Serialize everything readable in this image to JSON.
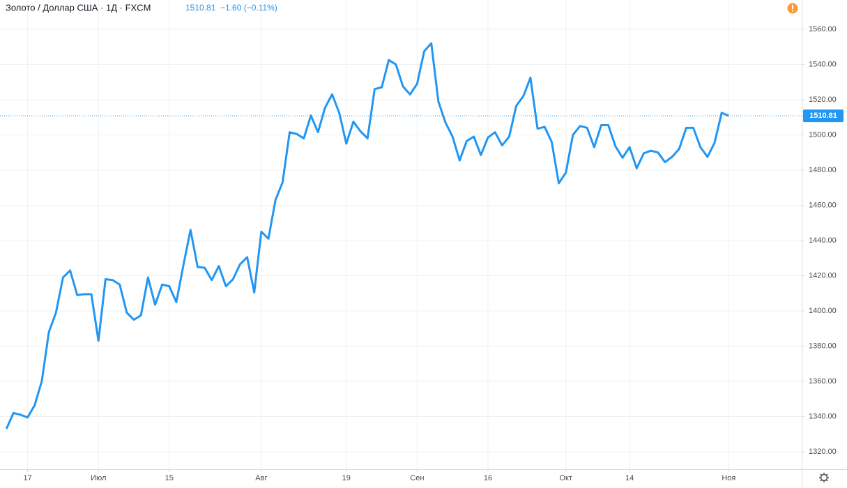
{
  "chart_data": {
    "type": "line",
    "title": "Золото / Доллар США · 1Д · FXCM",
    "change": "−1.60 (−0.11%)",
    "price_line": {
      "value": 1510.81,
      "label": "1510.81"
    },
    "color": "#2196f3",
    "grid": true,
    "values": [
      1333,
      1342,
      1341,
      1339.5,
      1346.5,
      1360,
      1388,
      1399,
      1419,
      1423,
      1409,
      1409.5,
      1409.5,
      1383,
      1418,
      1417.5,
      1415,
      1399,
      1395,
      1397.5,
      1419,
      1403.5,
      1415,
      1414,
      1405,
      1426,
      1446,
      1425,
      1424.5,
      1417.5,
      1425.5,
      1414,
      1418,
      1426.5,
      1430.5,
      1410.5,
      1445,
      1441,
      1463,
      1473,
      1501.5,
      1500.5,
      1498,
      1511,
      1501.5,
      1515.5,
      1523,
      1512.5,
      1495,
      1507.5,
      1502,
      1498,
      1526,
      1527,
      1542.5,
      1540,
      1527.5,
      1523,
      1529,
      1547.5,
      1552,
      1519,
      1507,
      1499,
      1485.5,
      1496.5,
      1499,
      1488.5,
      1498.5,
      1501.5,
      1494,
      1499,
      1516.5,
      1522,
      1532.5,
      1503.5,
      1504.5,
      1496,
      1472.5,
      1478.5,
      1500,
      1505,
      1504,
      1493,
      1505.5,
      1505.5,
      1493.5,
      1487,
      1493,
      1481,
      1489.5,
      1491,
      1490,
      1484.5,
      1487.5,
      1492,
      1504,
      1504,
      1493,
      1487.5,
      1495.5,
      1512.5,
      1510.81
    ],
    "xlim": [
      -0.9,
      112.3
    ],
    "xticks": [
      {
        "value": 3,
        "label": "17"
      },
      {
        "value": 13,
        "label": "Июл"
      },
      {
        "value": 23,
        "label": "15"
      },
      {
        "value": 36,
        "label": "Авг"
      },
      {
        "value": 48,
        "label": "19"
      },
      {
        "value": 58,
        "label": "Сен"
      },
      {
        "value": 68,
        "label": "16"
      },
      {
        "value": 79,
        "label": "Окт"
      },
      {
        "value": 88,
        "label": "14"
      },
      {
        "value": 102,
        "label": "Ноя"
      }
    ],
    "ylim": [
      1310.1,
      1576.6
    ],
    "yticks": [
      {
        "value": 1320,
        "label": "1320.00"
      },
      {
        "value": 1340,
        "label": "1340.00"
      },
      {
        "value": 1360,
        "label": "1360.00"
      },
      {
        "value": 1380,
        "label": "1380.00"
      },
      {
        "value": 1400,
        "label": "1400.00"
      },
      {
        "value": 1420,
        "label": "1420.00"
      },
      {
        "value": 1440,
        "label": "1440.00"
      },
      {
        "value": 1460,
        "label": "1460.00"
      },
      {
        "value": 1480,
        "label": "1480.00"
      },
      {
        "value": 1500,
        "label": "1500.00"
      },
      {
        "value": 1520,
        "label": "1520.00"
      },
      {
        "value": 1540,
        "label": "1540.00"
      },
      {
        "value": 1560,
        "label": "1560.00"
      }
    ]
  }
}
